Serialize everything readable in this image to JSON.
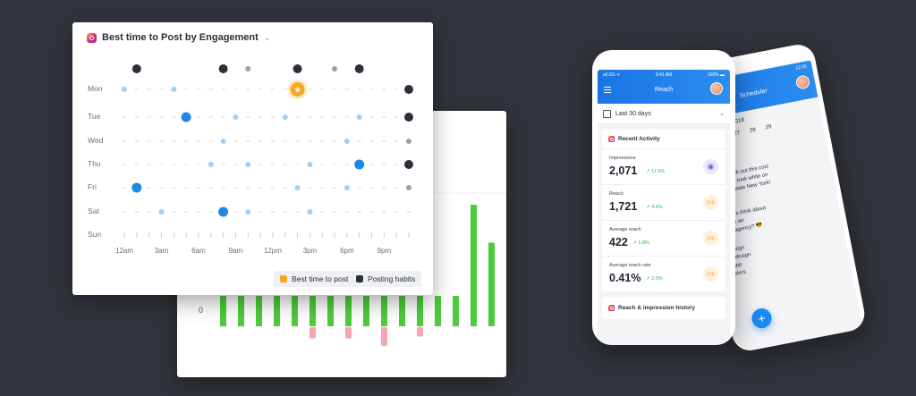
{
  "colors": {
    "background": "#31343a",
    "green": "#4ccc3a",
    "pink": "#f2a8ae",
    "light_blue": "#9fd0f5",
    "blue": "#1e88e5",
    "dark": "#2b2f3a",
    "orange": "#f5a623",
    "growth": "#2cb54a"
  },
  "bar_chart": {
    "y_label": "0",
    "chart_data": {
      "type": "bar",
      "positive": [
        0.4,
        0.4,
        0.4,
        0.4,
        0.4,
        0.4,
        0.4,
        0.4,
        0.4,
        0.4,
        0.4,
        0.4,
        0.4,
        0.4,
        0.8,
        0.55,
        0.65,
        0.78,
        0.9
      ],
      "negative": [
        0,
        0,
        0,
        0,
        0,
        0.18,
        0,
        0.18,
        0,
        0.3,
        0,
        0.15,
        0,
        0,
        0,
        0,
        0.42,
        0,
        0
      ]
    }
  },
  "heatmap": {
    "title": "Best time to Post by Engagement",
    "days": [
      "Mon",
      "Tue",
      "Wed",
      "Thu",
      "Fri",
      "Sat",
      "Sun"
    ],
    "times": [
      "12am",
      "3am",
      "6am",
      "9am",
      "12pm",
      "3pm",
      "6pm",
      "9pm"
    ],
    "legend": {
      "best": "Best time to post",
      "habits": "Posting habits"
    },
    "chart_data": {
      "type": "scatter",
      "columns": 24,
      "habit_dots": [
        {
          "col": 1,
          "size": "big"
        },
        {
          "col": 8,
          "size": "big"
        },
        {
          "col": 10,
          "size": "small"
        },
        {
          "col": 14,
          "size": "big"
        },
        {
          "col": 17,
          "size": "small"
        },
        {
          "col": 19,
          "size": "big"
        }
      ],
      "best_time": {
        "day": "Mon",
        "col": 14
      },
      "points": [
        {
          "day": "Mon",
          "col": 0,
          "level": "light"
        },
        {
          "day": "Mon",
          "col": 4,
          "level": "light"
        },
        {
          "day": "Mon",
          "col": 23,
          "level": "black"
        },
        {
          "day": "Tue",
          "col": 5,
          "level": "blue"
        },
        {
          "day": "Tue",
          "col": 9,
          "level": "light"
        },
        {
          "day": "Tue",
          "col": 13,
          "level": "light"
        },
        {
          "day": "Tue",
          "col": 19,
          "level": "light"
        },
        {
          "day": "Tue",
          "col": 23,
          "level": "black"
        },
        {
          "day": "Wed",
          "col": 8,
          "level": "light"
        },
        {
          "day": "Wed",
          "col": 18,
          "level": "light"
        },
        {
          "day": "Wed",
          "col": 23,
          "level": "grey"
        },
        {
          "day": "Thu",
          "col": 7,
          "level": "light"
        },
        {
          "day": "Thu",
          "col": 10,
          "level": "light"
        },
        {
          "day": "Thu",
          "col": 15,
          "level": "light"
        },
        {
          "day": "Thu",
          "col": 19,
          "level": "blue"
        },
        {
          "day": "Thu",
          "col": 23,
          "level": "black"
        },
        {
          "day": "Fri",
          "col": 1,
          "level": "blue"
        },
        {
          "day": "Fri",
          "col": 14,
          "level": "light"
        },
        {
          "day": "Fri",
          "col": 18,
          "level": "light"
        },
        {
          "day": "Fri",
          "col": 23,
          "level": "grey"
        },
        {
          "day": "Sat",
          "col": 3,
          "level": "light"
        },
        {
          "day": "Sat",
          "col": 8,
          "level": "blue"
        },
        {
          "day": "Sat",
          "col": 10,
          "level": "light"
        },
        {
          "day": "Sat",
          "col": 15,
          "level": "light"
        }
      ]
    }
  },
  "phone_front": {
    "status_left": "all GS ᯤ",
    "status_time": "9:41 AM",
    "status_right": "100% ▬",
    "title": "Reach",
    "date_range": "Last 30 days",
    "recent_activity": "Recent Activity",
    "metrics": [
      {
        "label": "Impressions",
        "value": "2,071",
        "change": "↗ 11.5%",
        "icon": "eye-icon",
        "icon_bg": "#ece8fb",
        "icon_color": "#7b61d9"
      },
      {
        "label": "Reach",
        "value": "1,721",
        "change": "↗ 4.4%",
        "icon": "broadcast-icon",
        "icon_bg": "#fdf0dd",
        "icon_color": "#f39c2c"
      },
      {
        "label": "Average reach",
        "value": "422",
        "change": "↗ 1.8%",
        "icon": "broadcast-icon",
        "icon_bg": "#fdf0dd",
        "icon_color": "#f39c2c"
      },
      {
        "label": "Average reach rate",
        "value": "0.41%",
        "change": "↗ 2.5%",
        "icon": "broadcast-icon",
        "icon_bg": "#fdf0dd",
        "icon_color": "#f39c2c"
      }
    ],
    "history": "Reach & impression history"
  },
  "phone_back": {
    "status_time": "12:30",
    "title": "Scheduler",
    "month": "March 2018",
    "days": [
      "26",
      "27",
      "28",
      "29"
    ],
    "day_marker": "25",
    "badge": "30",
    "text_lines": [
      "guys! Check out this cool",
      "r pictures i took while on",
      "ays in upstate New York!",
      "you guys think about",
      "I did for an",
      "esign agency? 😎",
      "erdesign",
      "phicdesign",
      "#bapp",
      "oosters"
    ],
    "fab": "+"
  }
}
